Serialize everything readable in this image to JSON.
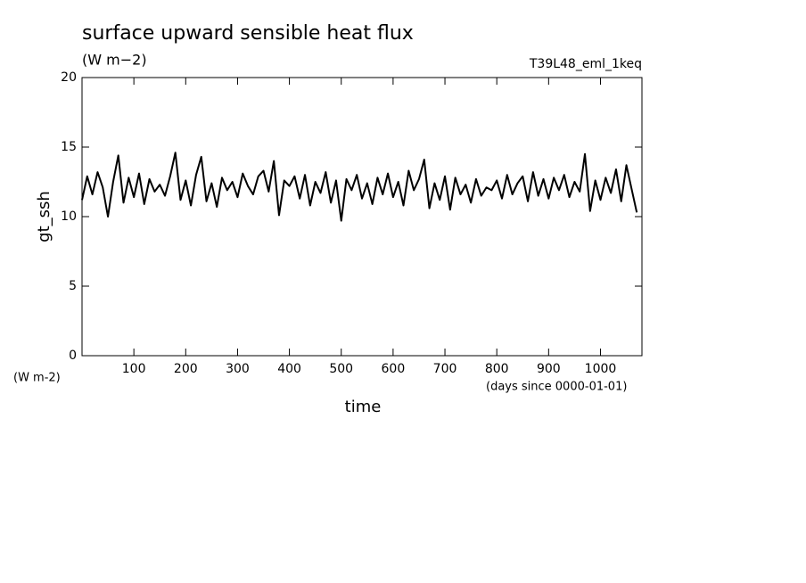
{
  "chart_data": {
    "type": "line",
    "title": "surface upward sensible heat flux",
    "subtitle": "(W m−2)",
    "annotation": "T39L48_eml_1keq",
    "y_label": "gt_ssh",
    "y_unit": "(W m-2)",
    "x_label": "time",
    "x_unit": "(days since 0000-01-01)",
    "xlim": [
      0,
      1080
    ],
    "ylim": [
      0,
      20
    ],
    "xticks": [
      100,
      200,
      300,
      400,
      500,
      600,
      700,
      800,
      900,
      1000
    ],
    "yticks": [
      0,
      5,
      10,
      15,
      20
    ],
    "color": "#000000",
    "x": [
      0,
      10,
      20,
      30,
      40,
      50,
      60,
      70,
      80,
      90,
      100,
      110,
      120,
      130,
      140,
      150,
      160,
      170,
      180,
      190,
      200,
      210,
      220,
      230,
      240,
      250,
      260,
      270,
      280,
      290,
      300,
      310,
      320,
      330,
      340,
      350,
      360,
      370,
      380,
      390,
      400,
      410,
      420,
      430,
      440,
      450,
      460,
      470,
      480,
      490,
      500,
      510,
      520,
      530,
      540,
      550,
      560,
      570,
      580,
      590,
      600,
      610,
      620,
      630,
      640,
      650,
      660,
      670,
      680,
      690,
      700,
      710,
      720,
      730,
      740,
      750,
      760,
      770,
      780,
      790,
      800,
      810,
      820,
      830,
      840,
      850,
      860,
      870,
      880,
      890,
      900,
      910,
      920,
      930,
      940,
      950,
      960,
      970,
      980,
      990,
      1000,
      1010,
      1020,
      1030,
      1040,
      1050,
      1060,
      1070
    ],
    "values": [
      11.2,
      12.9,
      11.6,
      13.2,
      12.1,
      10.0,
      12.5,
      14.4,
      11.0,
      12.8,
      11.4,
      13.1,
      10.9,
      12.7,
      11.8,
      12.3,
      11.5,
      12.9,
      14.6,
      11.2,
      12.6,
      10.8,
      13.0,
      14.3,
      11.1,
      12.4,
      10.7,
      12.8,
      11.9,
      12.5,
      11.4,
      13.1,
      12.2,
      11.6,
      12.9,
      13.3,
      11.8,
      14.0,
      10.1,
      12.6,
      12.2,
      12.9,
      11.3,
      13.0,
      10.8,
      12.5,
      11.7,
      13.2,
      11.0,
      12.6,
      9.7,
      12.7,
      11.9,
      13.0,
      11.3,
      12.4,
      10.9,
      12.8,
      11.6,
      13.1,
      11.4,
      12.5,
      10.8,
      13.3,
      11.9,
      12.7,
      14.1,
      10.6,
      12.4,
      11.2,
      12.9,
      10.5,
      12.8,
      11.6,
      12.3,
      11.0,
      12.7,
      11.5,
      12.1,
      11.9,
      12.6,
      11.3,
      13.0,
      11.6,
      12.4,
      12.9,
      11.1,
      13.2,
      11.5,
      12.7,
      11.3,
      12.8,
      11.9,
      13.0,
      11.4,
      12.5,
      11.8,
      14.5,
      10.4,
      12.6,
      11.2,
      12.8,
      11.7,
      13.4,
      11.1,
      13.7,
      12.0,
      10.3
    ]
  }
}
